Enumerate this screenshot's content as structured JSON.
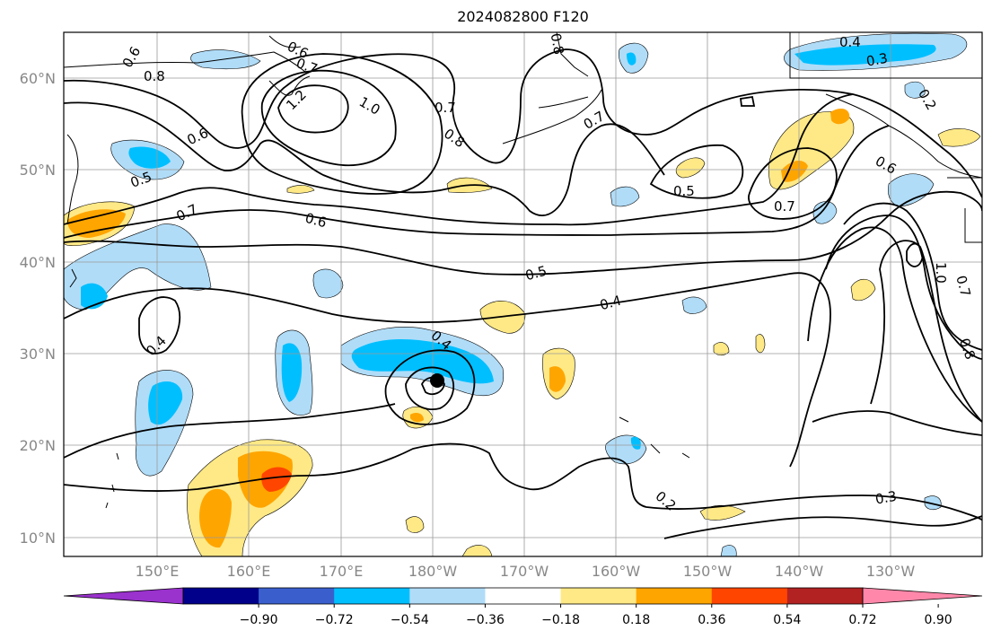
{
  "title": "2024082800 F120",
  "map": {
    "lat_labels": [
      "60°N",
      "50°N",
      "40°N",
      "30°N",
      "20°N",
      "10°N"
    ],
    "lon_labels": [
      "150°E",
      "160°E",
      "170°E",
      "180°W",
      "170°W",
      "160°W",
      "150°W",
      "140°W",
      "130°W"
    ],
    "contour_labels": [
      "0.6",
      "0.8",
      "0.6",
      "0.7",
      "1.2",
      "1.0",
      "0.7",
      "0.8",
      "0.6",
      "0.5",
      "0.7",
      "0.6",
      "0.5",
      "0.4",
      "0.4",
      "0.4",
      "0.5",
      "0.7",
      "0.4",
      "0.3",
      "0.2",
      "0.6",
      "1.0",
      "0.7",
      "0.8",
      "0.3",
      "0.2",
      "0.8",
      "0.7"
    ],
    "colors": {
      "land_line": "#000000",
      "grid": "#9a9a9a",
      "light_blue": "#b0dcf8",
      "cyan": "#00bfff",
      "light_yellow": "#ffe986",
      "orange": "#ffa500",
      "red_orange": "#ff4500"
    }
  },
  "colorbar": {
    "tick_labels": [
      "−0.90",
      "−0.72",
      "−0.54",
      "−0.36",
      "−0.18",
      "0.18",
      "0.36",
      "0.54",
      "0.72",
      "0.90"
    ],
    "colors": [
      "#9a32cd",
      "#00008b",
      "#3a5fcd",
      "#00bfff",
      "#b0dcf8",
      "#ffffff",
      "#ffe986",
      "#ffa500",
      "#ff4500",
      "#b22222",
      "#ff88aa"
    ]
  }
}
